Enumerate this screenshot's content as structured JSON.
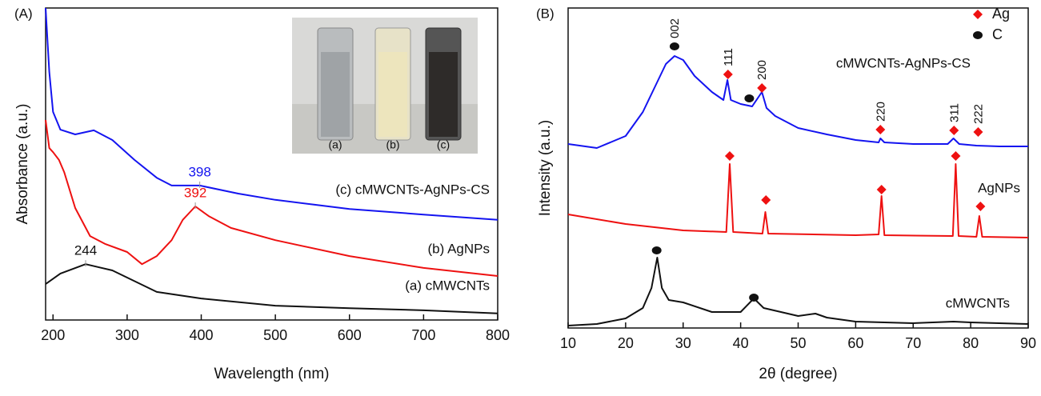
{
  "chart_data": [
    {
      "type": "line",
      "title": "(A)",
      "xlabel": "Wavelength (nm)",
      "ylabel": "Absorbance (a.u.)",
      "xlim": [
        190,
        800
      ],
      "ylim": [
        0,
        100
      ],
      "xticks": [
        200,
        300,
        400,
        500,
        600,
        700,
        800
      ],
      "series": [
        {
          "name": "(c) cMWCNTs-AgNPs-CS",
          "color": "#1414f0",
          "x": [
            190,
            195,
            200,
            210,
            230,
            255,
            280,
            310,
            340,
            360,
            398,
            450,
            500,
            600,
            700,
            800
          ],
          "values": [
            100,
            79.5,
            66.7,
            61,
            59.5,
            60.8,
            57.7,
            51.3,
            45.6,
            43.1,
            43.1,
            40.5,
            38.5,
            35.6,
            33.8,
            32.1
          ]
        },
        {
          "name": "(b) AgNPs",
          "color": "#ee1111",
          "x": [
            190,
            195,
            200,
            208,
            215,
            230,
            250,
            270,
            300,
            320,
            340,
            360,
            375,
            392,
            410,
            440,
            500,
            600,
            700,
            800
          ],
          "values": [
            64.1,
            55.1,
            53.8,
            51.3,
            47.4,
            35.9,
            26.9,
            24.4,
            21.8,
            17.9,
            20.5,
            25.6,
            32.1,
            36.4,
            33.3,
            29.5,
            25.6,
            20.5,
            16.7,
            14.1
          ]
        },
        {
          "name": "(a) cMWCNTs",
          "color": "#111111",
          "x": [
            190,
            210,
            244,
            280,
            340,
            400,
            500,
            600,
            700,
            800
          ],
          "values": [
            11.5,
            14.9,
            17.9,
            15.9,
            9,
            6.9,
            4.6,
            3.8,
            3.1,
            2.1
          ]
        }
      ],
      "annotations": [
        {
          "text": "398",
          "x": 398,
          "y": 43.1,
          "color": "#1414f0"
        },
        {
          "text": "392",
          "x": 392,
          "y": 36.4,
          "color": "#ee1111"
        },
        {
          "text": "244",
          "x": 244,
          "y": 17.9,
          "color": "#111111"
        }
      ],
      "inset_labels": [
        "(a)",
        "(b)",
        "(c)"
      ]
    },
    {
      "type": "line",
      "title": "(B)",
      "xlabel": "2θ (degree)",
      "ylabel": "Intensity (a.u.)",
      "xlim": [
        10,
        90
      ],
      "ylim": [
        0,
        100
      ],
      "xticks": [
        10,
        20,
        30,
        40,
        50,
        60,
        70,
        80,
        90
      ],
      "series": [
        {
          "name": "cMWCNTs-AgNPs-CS",
          "color": "#1414f0",
          "x": [
            10,
            15,
            20,
            23,
            25,
            27,
            28.5,
            30,
            32,
            35,
            37,
            37.7,
            38.3,
            40,
            42,
            43.7,
            44.5,
            46,
            50,
            55,
            60,
            64,
            64.3,
            65,
            70,
            76,
            77,
            78,
            81,
            85,
            90
          ],
          "values": [
            57.5,
            56.25,
            60,
            67.5,
            75,
            82.5,
            85,
            83.75,
            78.75,
            73.75,
            71.25,
            77.5,
            71.25,
            70,
            69.25,
            73.75,
            68.75,
            66.25,
            62.5,
            60.5,
            58.75,
            58,
            59.25,
            58,
            57.5,
            57.5,
            59.25,
            57.5,
            57,
            56.75,
            56.75
          ]
        },
        {
          "name": "AgNPs",
          "color": "#ee1111",
          "x": [
            10,
            20,
            30,
            37.5,
            38.1,
            38.7,
            43.8,
            44.3,
            44.8,
            60,
            64,
            64.5,
            65,
            76.9,
            77.4,
            77.9,
            81,
            81.5,
            82,
            90
          ],
          "values": [
            35.5,
            32.5,
            30.5,
            30,
            51.25,
            30,
            29.5,
            36.25,
            29.5,
            29,
            29.25,
            41.25,
            29,
            28.75,
            51.25,
            28.75,
            28.5,
            35,
            28.5,
            28.25
          ]
        },
        {
          "name": "cMWCNTs",
          "color": "#111111",
          "x": [
            10,
            15,
            20,
            23,
            24.5,
            25.5,
            26.3,
            27.5,
            30,
            35,
            40,
            42.3,
            44,
            50,
            53,
            55,
            60,
            70,
            77,
            80,
            90
          ],
          "values": [
            0.75,
            1.25,
            3,
            6.25,
            12.5,
            22,
            12.5,
            8.75,
            8,
            5,
            5,
            9.25,
            6.25,
            3.75,
            4.5,
            3.25,
            2,
            1.5,
            2,
            1.75,
            1.25
          ]
        }
      ],
      "legend": [
        {
          "name": "Ag",
          "color": "#ee1111",
          "shape": "diamond"
        },
        {
          "name": "C",
          "color": "#111111",
          "shape": "circle"
        }
      ],
      "markers": [
        {
          "marker": "C",
          "x": 28.5,
          "y": 88,
          "label": "002"
        },
        {
          "marker": "Ag",
          "x": 37.8,
          "y": 79.25,
          "label": "111"
        },
        {
          "marker": "C",
          "x": 41.5,
          "y": 71.75
        },
        {
          "marker": "Ag",
          "x": 43.7,
          "y": 75,
          "label": "200"
        },
        {
          "marker": "Ag",
          "x": 64.3,
          "y": 62,
          "label": "220"
        },
        {
          "marker": "Ag",
          "x": 77.1,
          "y": 61.75,
          "label": "311"
        },
        {
          "marker": "Ag",
          "x": 81.3,
          "y": 61.25,
          "label": "222"
        },
        {
          "marker": "Ag",
          "x": 38.1,
          "y": 53.75
        },
        {
          "marker": "Ag",
          "x": 44.4,
          "y": 40
        },
        {
          "marker": "Ag",
          "x": 64.5,
          "y": 43.25
        },
        {
          "marker": "Ag",
          "x": 77.4,
          "y": 53.75
        },
        {
          "marker": "Ag",
          "x": 81.7,
          "y": 38
        },
        {
          "marker": "C",
          "x": 25.4,
          "y": 24.25
        },
        {
          "marker": "C",
          "x": 42.3,
          "y": 9.5
        }
      ]
    }
  ]
}
